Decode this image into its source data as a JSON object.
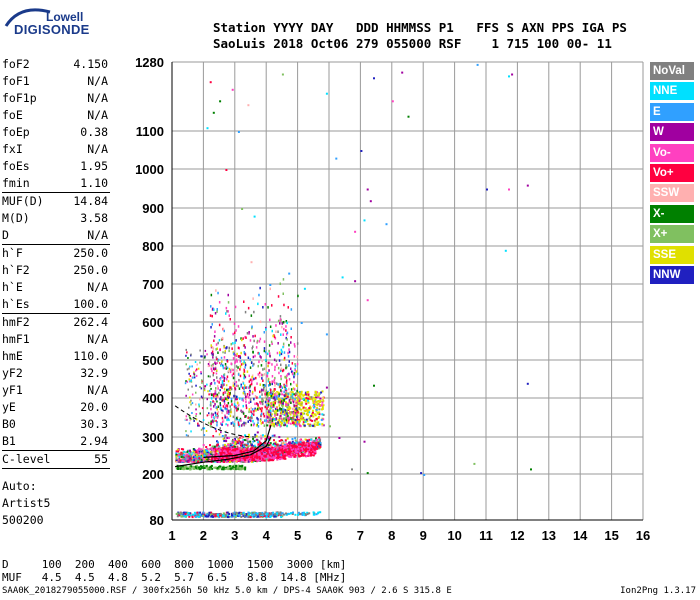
{
  "logo": {
    "company": "Lowell",
    "product": "DIGISONDE",
    "brand_color": "#1a3a8a"
  },
  "header": {
    "line1": "Station YYYY DAY   DDD HHMMSS P1   FFS S AXN PPS IGA PS",
    "line2": "SaoLuis 2018 Oct06 279 055000 RSF    1 715 100 00- 11"
  },
  "params": {
    "group1": [
      {
        "name": "foF2",
        "value": "4.150"
      },
      {
        "name": "foF1",
        "value": "N/A"
      },
      {
        "name": "foF1p",
        "value": "N/A"
      },
      {
        "name": "foE",
        "value": "N/A"
      },
      {
        "name": "foEp",
        "value": "0.38"
      },
      {
        "name": "fxI",
        "value": "N/A"
      },
      {
        "name": "foEs",
        "value": "1.95"
      },
      {
        "name": "fmin",
        "value": "1.10"
      }
    ],
    "group2": [
      {
        "name": "MUF(D)",
        "value": "14.84"
      },
      {
        "name": "M(D)",
        "value": "3.58"
      },
      {
        "name": "D",
        "value": "N/A"
      }
    ],
    "group3": [
      {
        "name": "h`F",
        "value": "250.0"
      },
      {
        "name": "h`F2",
        "value": "250.0"
      },
      {
        "name": "h`E",
        "value": "N/A"
      },
      {
        "name": "h`Es",
        "value": "100.0"
      }
    ],
    "group4": [
      {
        "name": "hmF2",
        "value": "262.4"
      },
      {
        "name": "hmF1",
        "value": "N/A"
      },
      {
        "name": "hmE",
        "value": "110.0"
      },
      {
        "name": "yF2",
        "value": "32.9"
      },
      {
        "name": "yF1",
        "value": "N/A"
      },
      {
        "name": "yE",
        "value": "20.0"
      },
      {
        "name": "B0",
        "value": "30.3"
      },
      {
        "name": "B1",
        "value": "2.94"
      }
    ],
    "group5": [
      {
        "name": "C-level",
        "value": "55"
      }
    ]
  },
  "auto": {
    "line1": "Auto:",
    "line2": "Artist5",
    "line3": "500200"
  },
  "legend": [
    {
      "label": "NoVal",
      "color": "#808080"
    },
    {
      "label": "NNE",
      "color": "#00e0ff"
    },
    {
      "label": "E",
      "color": "#30a0ff"
    },
    {
      "label": "W",
      "color": "#a000a0"
    },
    {
      "label": "Vo-",
      "color": "#ff40c0"
    },
    {
      "label": "Vo+",
      "color": "#ff0040"
    },
    {
      "label": "SSW",
      "color": "#ffb0b0"
    },
    {
      "label": "X-",
      "color": "#008000"
    },
    {
      "label": "X+",
      "color": "#80c060"
    },
    {
      "label": "SSE",
      "color": "#e0e000"
    },
    {
      "label": "NNW",
      "color": "#2020c0"
    }
  ],
  "chart_data": {
    "type": "scatter",
    "title": "",
    "xlabel": "",
    "ylabel": "",
    "xlim": [
      1,
      16
    ],
    "x_ticks": [
      1,
      2,
      3,
      4,
      5,
      6,
      7,
      8,
      9,
      10,
      11,
      12,
      13,
      14,
      15,
      16
    ],
    "ylim": [
      80,
      1280
    ],
    "y_ticks_bottom": [
      80,
      200,
      300,
      400,
      500,
      600,
      700,
      800,
      900,
      1000,
      1100,
      1280
    ],
    "y_scale": "non-linear: 100 km steps up to 1100 km, then 1280 km at top",
    "grid": true,
    "description_series": [
      {
        "name": "F-layer echo cloud",
        "x_range": [
          1.1,
          5.8
        ],
        "y_range": [
          220,
          760
        ]
      },
      {
        "name": "Es trace",
        "x_range": [
          1.1,
          5.8
        ],
        "y_range": [
          90,
          110
        ]
      },
      {
        "name": "Sporadic scattered echoes",
        "x_range": [
          6,
          13
        ],
        "y_range": [
          200,
          1270
        ]
      }
    ],
    "profile_curve": [
      {
        "x": 1.1,
        "y": 220
      },
      {
        "x": 2.0,
        "y": 232
      },
      {
        "x": 2.8,
        "y": 240
      },
      {
        "x": 3.5,
        "y": 252
      },
      {
        "x": 4.0,
        "y": 275
      },
      {
        "x": 4.15,
        "y": 300
      }
    ],
    "ordinary_trace": [
      {
        "x": 2.0,
        "y": 245
      },
      {
        "x": 3.0,
        "y": 250
      },
      {
        "x": 3.6,
        "y": 262
      },
      {
        "x": 4.0,
        "y": 290
      },
      {
        "x": 4.15,
        "y": 330
      }
    ]
  },
  "footer": {
    "line1": "D     100  200  400  600  800  1000  1500  3000 [km]",
    "line2": "MUF   4.5  4.5  4.8  5.2  5.7  6.5   8.8  14.8 [MHz]"
  },
  "bottom": "SAA0K_2018279055000.RSF / 300fx256h 50 kHz 5.0 km / DPS-4 SAA0K 903 / 2.6 S 315.8 E",
  "version": "Ion2Png 1.3.17"
}
